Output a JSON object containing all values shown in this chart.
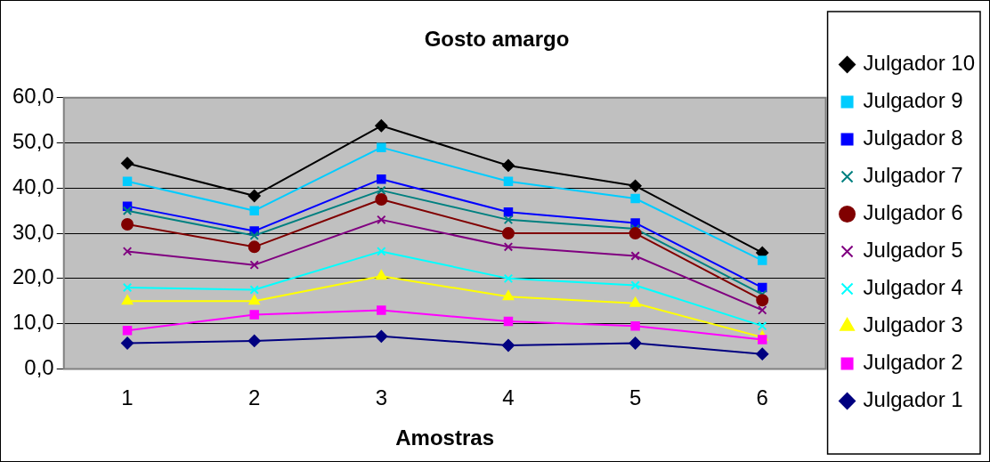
{
  "chart_data": {
    "type": "line",
    "title": "Gosto amargo",
    "xlabel": "Amostras",
    "categories": [
      "1",
      "2",
      "3",
      "4",
      "5",
      "6"
    ],
    "ylim": [
      0,
      60
    ],
    "yticks": [
      {
        "value": 0,
        "label": "0,0"
      },
      {
        "value": 10,
        "label": "10,0"
      },
      {
        "value": 20,
        "label": "20,0"
      },
      {
        "value": 30,
        "label": "30,0"
      },
      {
        "value": 40,
        "label": "40,0"
      },
      {
        "value": 50,
        "label": "50,0"
      },
      {
        "value": 60,
        "label": "60,0"
      }
    ],
    "grid": "y",
    "legend": "right",
    "line_style": "solid",
    "series": [
      {
        "name": "Julgador 1",
        "color": "#000080",
        "marker": "diamond",
        "values": [
          5.7,
          6.2,
          7.2,
          5.2,
          5.7,
          3.3
        ]
      },
      {
        "name": "Julgador 2",
        "color": "#ff00ff",
        "marker": "square",
        "values": [
          8.5,
          12,
          13,
          10.5,
          9.5,
          6.5
        ]
      },
      {
        "name": "Julgador 3",
        "color": "#ffff00",
        "marker": "triangle",
        "values": [
          15,
          15,
          20.5,
          16,
          14.5,
          7
        ]
      },
      {
        "name": "Julgador 4",
        "color": "#00ffff",
        "marker": "cross",
        "values": [
          18,
          17.5,
          26,
          20,
          18.5,
          9.5
        ]
      },
      {
        "name": "Julgador 5",
        "color": "#800080",
        "marker": "cross",
        "values": [
          26,
          23,
          33,
          27,
          25,
          13
        ]
      },
      {
        "name": "Julgador 6",
        "color": "#800000",
        "marker": "circle",
        "values": [
          32,
          27,
          37.5,
          30,
          30,
          15.2
        ]
      },
      {
        "name": "Julgador 7",
        "color": "#008080",
        "marker": "cross",
        "values": [
          35,
          29.5,
          39.5,
          33,
          31,
          16.5
        ]
      },
      {
        "name": "Julgador 8",
        "color": "#0000ff",
        "marker": "square",
        "values": [
          36,
          30.5,
          42,
          34.7,
          32.3,
          18
        ]
      },
      {
        "name": "Julgador 9",
        "color": "#00ccff",
        "marker": "square",
        "values": [
          41.5,
          35,
          49,
          41.5,
          37.7,
          24
        ]
      },
      {
        "name": "Julgador 10",
        "color": "#000000",
        "marker": "diamond",
        "values": [
          45.5,
          38.3,
          53.8,
          45,
          40.5,
          25.7
        ]
      }
    ]
  }
}
